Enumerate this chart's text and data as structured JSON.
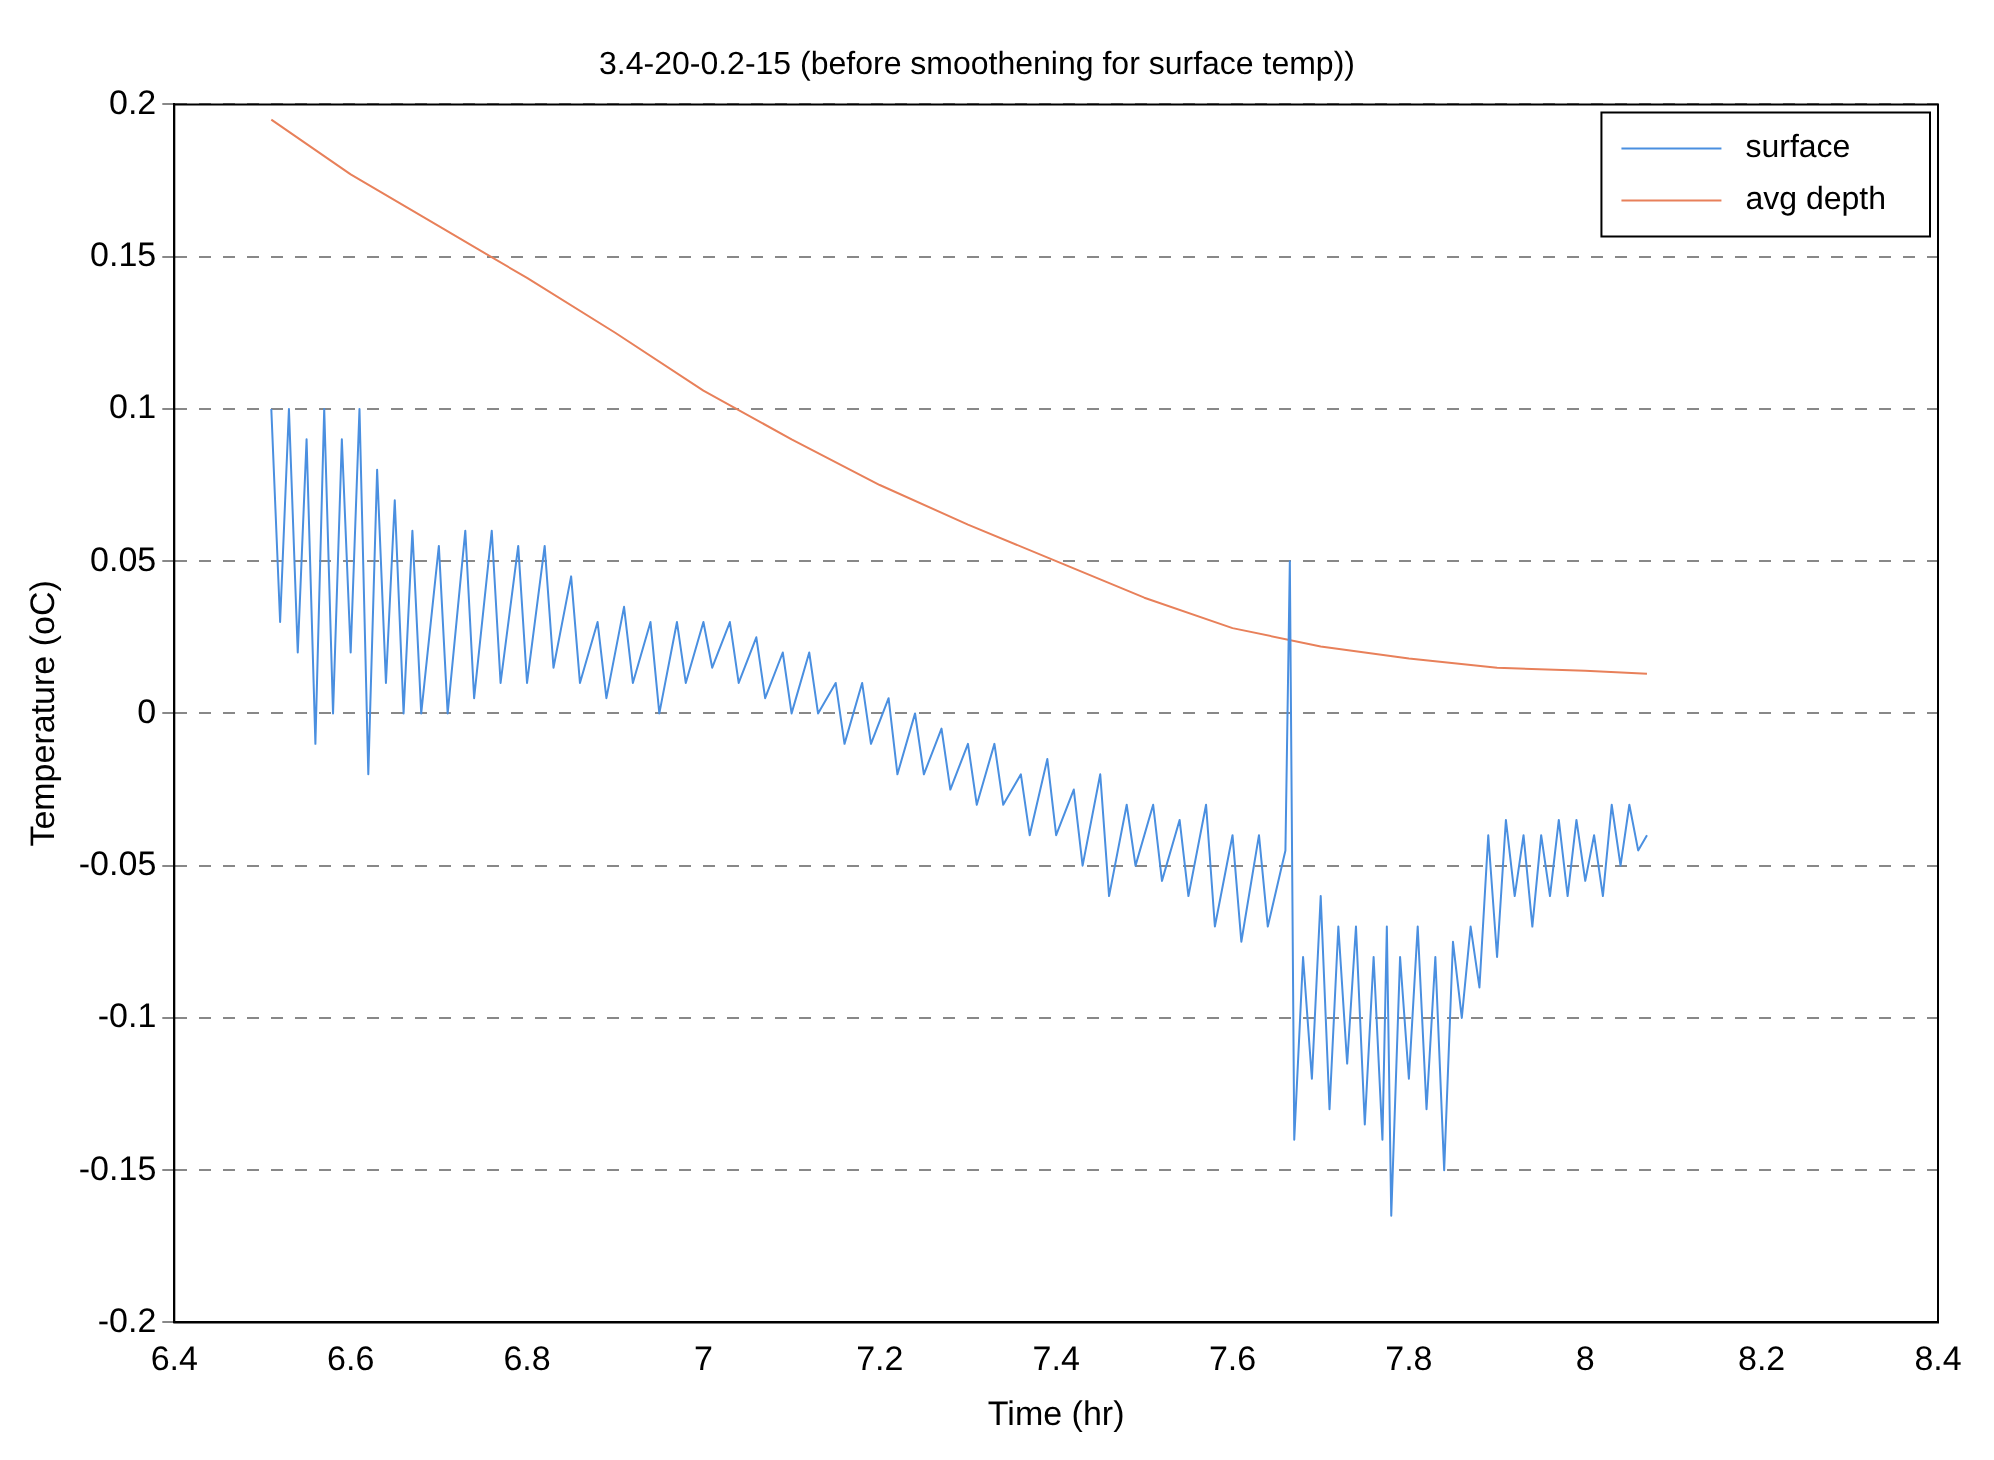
{
  "chart_data": {
    "type": "line",
    "title": "3.4-20-0.2-15 (before smoothening for surface temp))",
    "xlabel": "Time (hr)",
    "ylabel": "Temperature (oC)",
    "xlim": [
      6.4,
      8.4
    ],
    "xticks": [
      6.4,
      6.6,
      6.8,
      7,
      7.2,
      7.4,
      7.6,
      7.8,
      8,
      8.2,
      8.4
    ],
    "ylim": [
      -0.2,
      0.2
    ],
    "yticks": [
      -0.2,
      -0.15,
      -0.1,
      -0.05,
      0,
      0.05,
      0.1,
      0.15,
      0.2
    ],
    "grid": "y",
    "legend": "top right",
    "marker": "none",
    "line_style": "solid",
    "series": [
      {
        "name": "surface",
        "color": "#4a8fe0",
        "x": [
          6.51,
          6.52,
          6.53,
          6.54,
          6.55,
          6.56,
          6.57,
          6.58,
          6.59,
          6.6,
          6.61,
          6.62,
          6.63,
          6.64,
          6.65,
          6.66,
          6.67,
          6.68,
          6.7,
          6.71,
          6.73,
          6.74,
          6.76,
          6.77,
          6.79,
          6.8,
          6.82,
          6.83,
          6.85,
          6.86,
          6.88,
          6.89,
          6.91,
          6.92,
          6.94,
          6.95,
          6.97,
          6.98,
          7,
          7.01,
          7.03,
          7.04,
          7.06,
          7.07,
          7.09,
          7.1,
          7.12,
          7.13,
          7.15,
          7.16,
          7.18,
          7.19,
          7.21,
          7.22,
          7.24,
          7.25,
          7.27,
          7.28,
          7.3,
          7.31,
          7.33,
          7.34,
          7.36,
          7.37,
          7.39,
          7.4,
          7.42,
          7.43,
          7.45,
          7.46,
          7.48,
          7.49,
          7.51,
          7.52,
          7.54,
          7.55,
          7.57,
          7.58,
          7.6,
          7.61,
          7.63,
          7.64,
          7.66,
          7.665,
          7.67,
          7.68,
          7.69,
          7.7,
          7.71,
          7.72,
          7.73,
          7.74,
          7.75,
          7.76,
          7.77,
          7.775,
          7.78,
          7.79,
          7.8,
          7.81,
          7.82,
          7.83,
          7.84,
          7.85,
          7.86,
          7.87,
          7.88,
          7.89,
          7.9,
          7.91,
          7.92,
          7.93,
          7.94,
          7.95,
          7.96,
          7.97,
          7.98,
          7.99,
          8,
          8.01,
          8.02,
          8.03,
          8.04,
          8.05,
          8.06,
          8.07
        ],
        "values": [
          0.1,
          0.03,
          0.1,
          0.02,
          0.09,
          -0.01,
          0.1,
          0,
          0.09,
          0.02,
          0.1,
          -0.02,
          0.08,
          0.01,
          0.07,
          0,
          0.06,
          0,
          0.055,
          0,
          0.06,
          0.005,
          0.06,
          0.01,
          0.055,
          0.01,
          0.055,
          0.015,
          0.045,
          0.01,
          0.03,
          0.005,
          0.035,
          0.01,
          0.03,
          0,
          0.03,
          0.01,
          0.03,
          0.015,
          0.03,
          0.01,
          0.025,
          0.005,
          0.02,
          0,
          0.02,
          0,
          0.01,
          -0.01,
          0.01,
          -0.01,
          0.005,
          -0.02,
          0,
          -0.02,
          -0.005,
          -0.025,
          -0.01,
          -0.03,
          -0.01,
          -0.03,
          -0.02,
          -0.04,
          -0.015,
          -0.04,
          -0.025,
          -0.05,
          -0.02,
          -0.06,
          -0.03,
          -0.05,
          -0.03,
          -0.055,
          -0.035,
          -0.06,
          -0.03,
          -0.07,
          -0.04,
          -0.075,
          -0.04,
          -0.07,
          -0.045,
          0.05,
          -0.14,
          -0.08,
          -0.12,
          -0.06,
          -0.13,
          -0.07,
          -0.115,
          -0.07,
          -0.135,
          -0.08,
          -0.14,
          -0.07,
          -0.165,
          -0.08,
          -0.12,
          -0.07,
          -0.13,
          -0.08,
          -0.15,
          -0.075,
          -0.1,
          -0.07,
          -0.09,
          -0.04,
          -0.08,
          -0.035,
          -0.06,
          -0.04,
          -0.07,
          -0.04,
          -0.06,
          -0.035,
          -0.06,
          -0.035,
          -0.055,
          -0.04,
          -0.06,
          -0.03,
          -0.05,
          -0.03,
          -0.045,
          -0.04
        ]
      },
      {
        "name": "avg depth",
        "color": "#e8805a",
        "x": [
          6.51,
          6.6,
          6.7,
          6.8,
          6.9,
          7,
          7.1,
          7.2,
          7.3,
          7.4,
          7.5,
          7.6,
          7.7,
          7.8,
          7.9,
          8,
          8.07
        ],
        "values": [
          0.195,
          0.177,
          0.16,
          0.143,
          0.125,
          0.106,
          0.09,
          0.075,
          0.062,
          0.05,
          0.038,
          0.028,
          0.022,
          0.018,
          0.015,
          0.014,
          0.013
        ]
      }
    ]
  }
}
